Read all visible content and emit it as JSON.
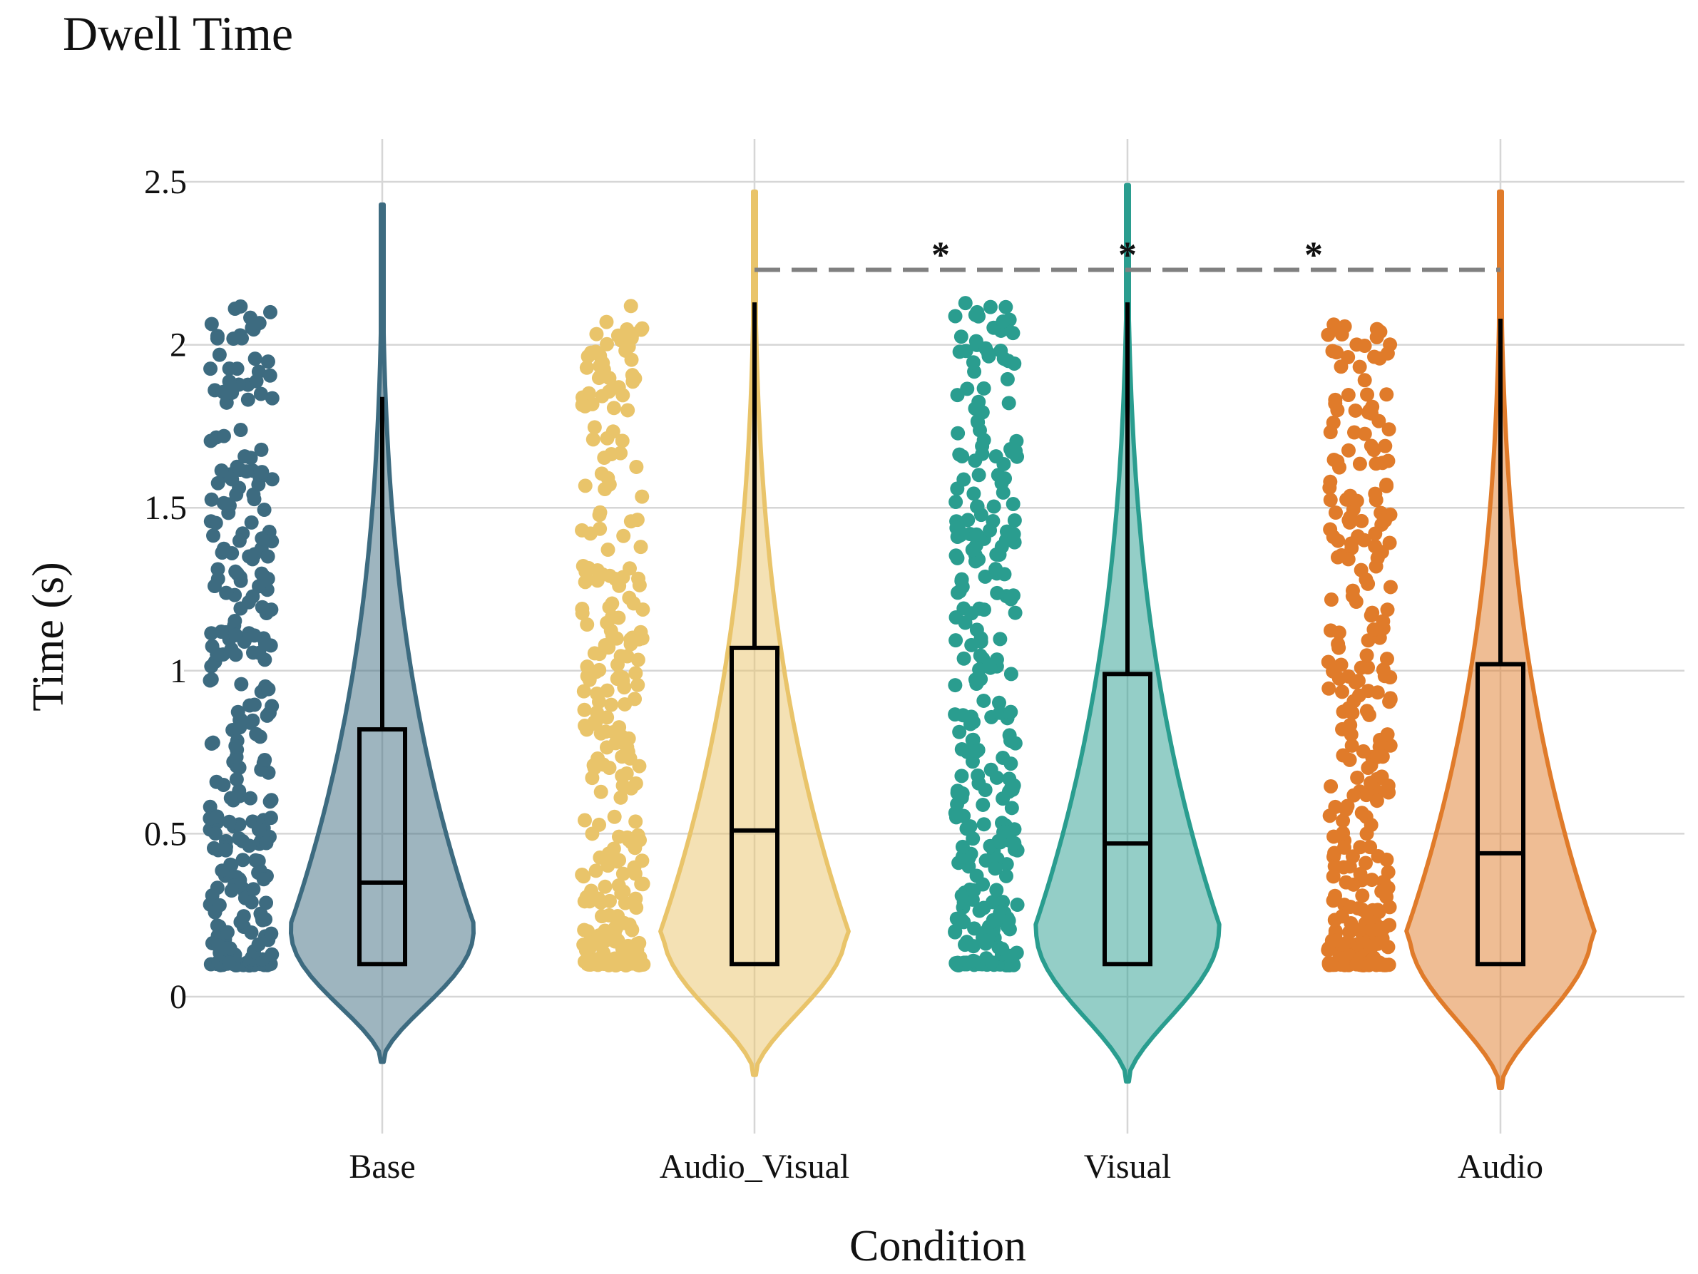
{
  "chart_data": {
    "type": "violin",
    "title": "Dwell Time",
    "xlabel": "Condition",
    "ylabel": "Time (s)",
    "ylim": [
      -0.35,
      2.75
    ],
    "yticks": [
      0,
      0.5,
      1,
      1.5,
      2,
      2.5
    ],
    "ytick_labels": [
      "0",
      "0.5",
      "1",
      "1.5",
      "2",
      "2.5"
    ],
    "grid": true,
    "categories": [
      "Base",
      "Audio_Visual",
      "Visual",
      "Audio"
    ],
    "colors": [
      "#3d6b80",
      "#e9c46a",
      "#2a9d8f",
      "#e07b2a"
    ],
    "violin_range": [
      [
        -0.2,
        2.43
      ],
      [
        -0.24,
        2.47
      ],
      [
        -0.26,
        2.49
      ],
      [
        -0.28,
        2.47
      ]
    ],
    "boxplots": [
      {
        "min": 0.1,
        "q1": 0.1,
        "median": 0.35,
        "q3": 0.82,
        "max": 1.84
      },
      {
        "min": 0.1,
        "q1": 0.1,
        "median": 0.51,
        "q3": 1.07,
        "max": 2.13
      },
      {
        "min": 0.1,
        "q1": 0.1,
        "median": 0.47,
        "q3": 0.99,
        "max": 2.13
      },
      {
        "min": 0.1,
        "q1": 0.1,
        "median": 0.44,
        "q3": 1.02,
        "max": 2.08
      }
    ],
    "point_range": [
      [
        0.1,
        2.13
      ],
      [
        0.1,
        2.13
      ],
      [
        0.1,
        2.13
      ],
      [
        0.1,
        2.09
      ]
    ],
    "significance": {
      "from": "Audio_Visual",
      "to": "Audio",
      "y": 2.23,
      "marks": [
        "*",
        "*",
        "*"
      ]
    }
  }
}
